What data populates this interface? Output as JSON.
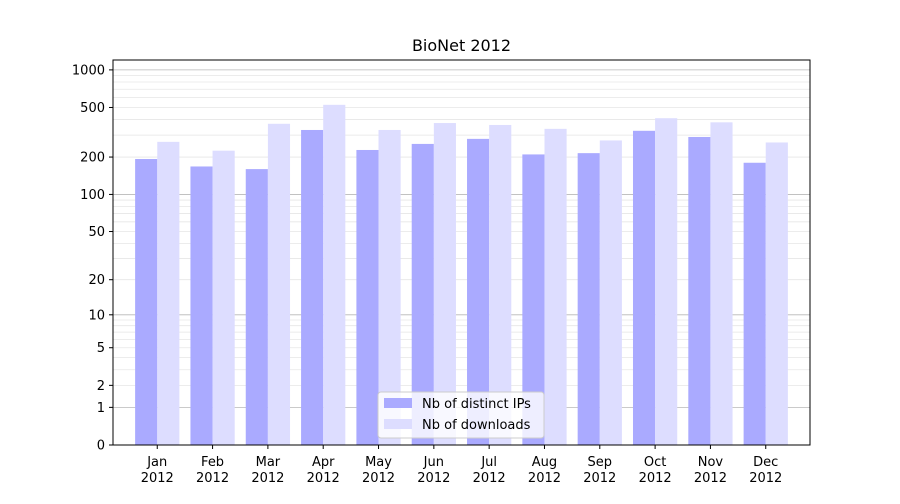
{
  "chart_data": {
    "type": "bar",
    "title": "BioNet 2012",
    "xlabel": "",
    "ylabel": "",
    "y_scale": "log(1+y)",
    "ylim": [
      0,
      1200
    ],
    "y_ticks": [
      0,
      1,
      2,
      5,
      10,
      20,
      50,
      100,
      200,
      500,
      1000
    ],
    "categories": [
      [
        "Jan",
        "2012"
      ],
      [
        "Feb",
        "2012"
      ],
      [
        "Mar",
        "2012"
      ],
      [
        "Apr",
        "2012"
      ],
      [
        "May",
        "2012"
      ],
      [
        "Jun",
        "2012"
      ],
      [
        "Jul",
        "2012"
      ],
      [
        "Aug",
        "2012"
      ],
      [
        "Sep",
        "2012"
      ],
      [
        "Oct",
        "2012"
      ],
      [
        "Nov",
        "2012"
      ],
      [
        "Dec",
        "2012"
      ]
    ],
    "series": [
      {
        "name": "Nb of distinct IPs",
        "color": "#aaaaff",
        "values": [
          193,
          168,
          160,
          330,
          228,
          255,
          280,
          210,
          215,
          325,
          290,
          180
        ]
      },
      {
        "name": "Nb of downloads",
        "color": "#ddddff",
        "values": [
          265,
          225,
          370,
          525,
          330,
          375,
          362,
          337,
          272,
          410,
          380,
          262
        ]
      }
    ],
    "grid": true,
    "legend_position": "bottom-center"
  }
}
